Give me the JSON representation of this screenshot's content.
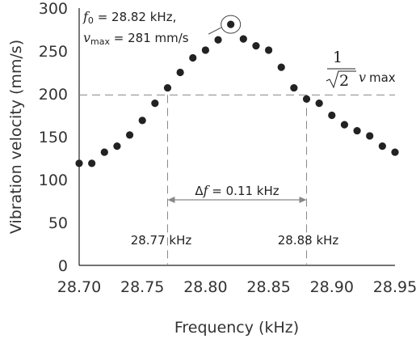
{
  "chart_data": {
    "type": "scatter",
    "xlabel": "Frequency (kHz)",
    "ylabel": "Vibration velocity (mm/s)",
    "xlim": [
      28.7,
      28.95
    ],
    "ylim": [
      0,
      300
    ],
    "xticks": [
      "28.70",
      "28.75",
      "28.80",
      "28.85",
      "28.90",
      "28.95"
    ],
    "yticks": [
      "0",
      "50",
      "100",
      "150",
      "200",
      "250",
      "300"
    ],
    "grid": false,
    "marker_color": "#222222",
    "points": [
      {
        "x": 28.7,
        "y": 119
      },
      {
        "x": 28.71,
        "y": 119
      },
      {
        "x": 28.72,
        "y": 132
      },
      {
        "x": 28.73,
        "y": 139
      },
      {
        "x": 28.74,
        "y": 152
      },
      {
        "x": 28.75,
        "y": 169
      },
      {
        "x": 28.76,
        "y": 189
      },
      {
        "x": 28.77,
        "y": 207
      },
      {
        "x": 28.78,
        "y": 225
      },
      {
        "x": 28.79,
        "y": 242
      },
      {
        "x": 28.8,
        "y": 251
      },
      {
        "x": 28.81,
        "y": 263
      },
      {
        "x": 28.82,
        "y": 281
      },
      {
        "x": 28.83,
        "y": 264
      },
      {
        "x": 28.84,
        "y": 256
      },
      {
        "x": 28.85,
        "y": 251
      },
      {
        "x": 28.86,
        "y": 231
      },
      {
        "x": 28.87,
        "y": 207
      },
      {
        "x": 28.88,
        "y": 194
      },
      {
        "x": 28.89,
        "y": 189
      },
      {
        "x": 28.9,
        "y": 175
      },
      {
        "x": 28.91,
        "y": 164
      },
      {
        "x": 28.92,
        "y": 157
      },
      {
        "x": 28.93,
        "y": 151
      },
      {
        "x": 28.94,
        "y": 139
      },
      {
        "x": 28.95,
        "y": 132
      }
    ],
    "reference_lines": {
      "horizontal_y": 198.7,
      "vertical_x": [
        28.77,
        28.88
      ]
    },
    "annotations": {
      "peak_f0_prefix": "f",
      "peak_f0_sub": "0",
      "peak_f0_text": " = 28.82 kHz,",
      "peak_vmax_prefix": "v",
      "peak_vmax_sub": "max",
      "peak_vmax_text": " = 281 mm/s",
      "half_power_num": "1",
      "half_power_den": "2",
      "half_power_v": "v",
      "half_power_sub": "max",
      "delta_prefix": "Δ",
      "delta_f": "f",
      "delta_text": " = 0.11 kHz",
      "left_freq": "28.77 kHz",
      "right_freq": "28.88 kHz"
    }
  }
}
